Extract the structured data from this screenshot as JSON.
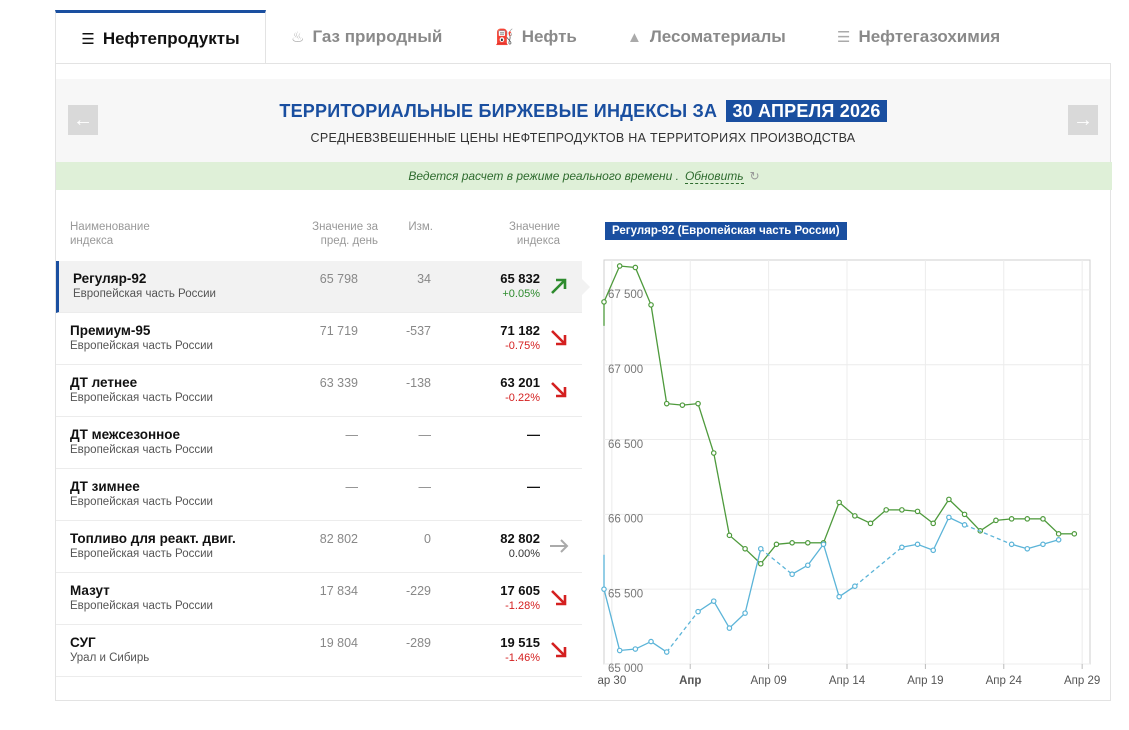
{
  "tabs": [
    {
      "label": "Нефтепродукты",
      "icon": "refinery-icon",
      "active": true
    },
    {
      "label": "Газ природный",
      "icon": "flame-icon",
      "active": false
    },
    {
      "label": "Нефть",
      "icon": "oil-pump-icon",
      "active": false
    },
    {
      "label": "Лесоматериалы",
      "icon": "trees-icon",
      "active": false
    },
    {
      "label": "Нефтегазохимия",
      "icon": "chemistry-icon",
      "active": false
    }
  ],
  "header": {
    "title": "ТЕРРИТОРИАЛЬНЫЕ БИРЖЕВЫЕ ИНДЕКСЫ ЗА",
    "date": "30 АПРЕЛЯ 2026",
    "subtitle": "СРЕДНЕВЗВЕШЕННЫЕ ЦЕНЫ НЕФТЕПРОДУКТОВ НА ТЕРРИТОРИЯХ ПРОИЗВОДСТВА",
    "prev_arrow": "←",
    "next_arrow": "→"
  },
  "notice": {
    "text": "Ведется расчет в режиме реального времени .",
    "refresh_label": "Обновить",
    "refresh_icon": "↻"
  },
  "table": {
    "headers": {
      "name": "Наименование индекса",
      "prev": "Значение за пред. день",
      "change": "Изм.",
      "value": "Значение индекса"
    },
    "rows": [
      {
        "name": "Регуляр-92",
        "region": "Европейская часть России",
        "prev": "65 798",
        "change": "34",
        "value": "65 832",
        "pct": "+0.05%",
        "trend": "up",
        "selected": true
      },
      {
        "name": "Премиум-95",
        "region": "Европейская часть России",
        "prev": "71 719",
        "change": "-537",
        "value": "71 182",
        "pct": "-0.75%",
        "trend": "down",
        "selected": false
      },
      {
        "name": "ДТ летнее",
        "region": "Европейская часть России",
        "prev": "63 339",
        "change": "-138",
        "value": "63 201",
        "pct": "-0.22%",
        "trend": "down",
        "selected": false
      },
      {
        "name": "ДТ межсезонное",
        "region": "Европейская часть России",
        "prev": "—",
        "change": "—",
        "value": "—",
        "pct": "",
        "trend": "none",
        "selected": false
      },
      {
        "name": "ДТ зимнее",
        "region": "Европейская часть России",
        "prev": "—",
        "change": "—",
        "value": "—",
        "pct": "",
        "trend": "none",
        "selected": false
      },
      {
        "name": "Топливо для реакт. двиг.",
        "region": "Европейская часть России",
        "prev": "82 802",
        "change": "0",
        "value": "82 802",
        "pct": "0.00%",
        "trend": "flat",
        "selected": false
      },
      {
        "name": "Мазут",
        "region": "Европейская часть России",
        "prev": "17 834",
        "change": "-229",
        "value": "17 605",
        "pct": "-1.28%",
        "trend": "down",
        "selected": false
      },
      {
        "name": "СУГ",
        "region": "Урал и Сибирь",
        "prev": "19 804",
        "change": "-289",
        "value": "19 515",
        "pct": "-1.46%",
        "trend": "down",
        "selected": false
      }
    ]
  },
  "colors": {
    "accent": "#1a4fa0",
    "up": "#2e8b2e",
    "down": "#d42020",
    "flat": "#aaaaaa",
    "series_green": "#4e9a3c",
    "series_blue": "#5bb4d8"
  },
  "chart_data": {
    "type": "line",
    "title": "Регуляр-92 (Европейская часть России)",
    "ylim": [
      65000,
      67700
    ],
    "y_ticks": [
      "65 000",
      "65 500",
      "66 000",
      "66 500",
      "67 000",
      "67 500"
    ],
    "y_tick_values": [
      65000,
      65500,
      66000,
      66500,
      67000,
      67500
    ],
    "x_tick_labels": [
      {
        "label": "ар 30",
        "index": 0.5,
        "bold": false
      },
      {
        "label": "Апр",
        "index": 5.5,
        "bold": true
      },
      {
        "label": "Апр 09",
        "index": 10.5,
        "bold": false
      },
      {
        "label": "Апр 14",
        "index": 15.5,
        "bold": false
      },
      {
        "label": "Апр 19",
        "index": 20.5,
        "bold": false
      },
      {
        "label": "Апр 24",
        "index": 25.5,
        "bold": false
      },
      {
        "label": "Апр 29",
        "index": 30.5,
        "bold": false
      }
    ],
    "series": [
      {
        "color": "green",
        "style": "solid",
        "points": [
          [
            0,
            67420
          ],
          [
            1,
            67660
          ],
          [
            2,
            67650
          ],
          [
            3,
            67400
          ],
          [
            4,
            66740
          ],
          [
            5,
            66730
          ],
          [
            6,
            66740
          ],
          [
            7,
            66410
          ],
          [
            8,
            65860
          ],
          [
            9,
            65770
          ],
          [
            10,
            65670
          ],
          [
            11,
            65800
          ],
          [
            12,
            65810
          ],
          [
            13,
            65810
          ],
          [
            14,
            65810
          ],
          [
            15,
            66080
          ],
          [
            16,
            65990
          ],
          [
            17,
            65940
          ],
          [
            18,
            66030
          ],
          [
            19,
            66030
          ],
          [
            20,
            66020
          ],
          [
            21,
            65940
          ],
          [
            22,
            66100
          ],
          [
            23,
            66000
          ],
          [
            24,
            65890
          ],
          [
            25,
            65960
          ],
          [
            26,
            65970
          ],
          [
            27,
            65970
          ],
          [
            28,
            65970
          ],
          [
            29,
            65870
          ],
          [
            30,
            65870
          ]
        ]
      },
      {
        "color": "blue",
        "style": "mixed",
        "points": [
          [
            0,
            65500
          ],
          [
            1,
            65090
          ],
          [
            2,
            65100
          ],
          [
            3,
            65150
          ],
          [
            4,
            65080
          ],
          [
            6,
            65350
          ],
          [
            7,
            65420
          ],
          [
            8,
            65240
          ],
          [
            9,
            65340
          ],
          [
            10,
            65770
          ],
          [
            12,
            65600
          ],
          [
            13,
            65660
          ],
          [
            14,
            65800
          ],
          [
            15,
            65450
          ],
          [
            16,
            65520
          ],
          [
            19,
            65780
          ],
          [
            20,
            65800
          ],
          [
            21,
            65760
          ],
          [
            22,
            65980
          ],
          [
            23,
            65930
          ],
          [
            26,
            65800
          ],
          [
            27,
            65770
          ],
          [
            28,
            65800
          ],
          [
            29,
            65830
          ]
        ]
      }
    ]
  }
}
